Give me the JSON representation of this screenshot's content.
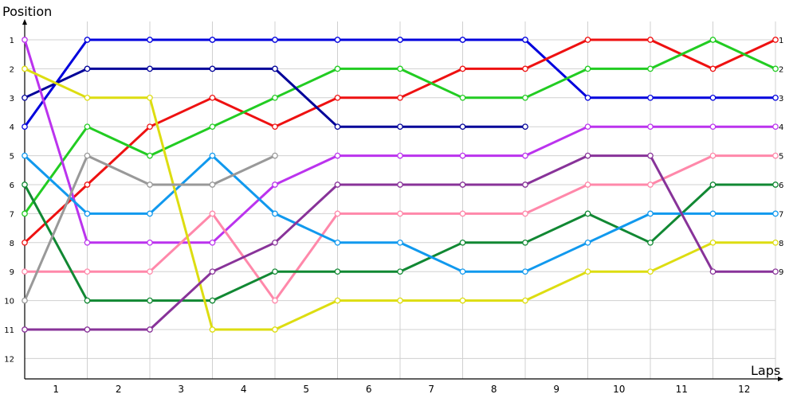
{
  "chart_data": {
    "type": "line",
    "title": "",
    "ylabel": "Position",
    "xlabel": "Laps",
    "x_ticks": [
      "1",
      "2",
      "3",
      "4",
      "5",
      "6",
      "7",
      "8",
      "9",
      "10",
      "11",
      "12"
    ],
    "y_ticks": [
      "1",
      "2",
      "3",
      "4",
      "5",
      "6",
      "7",
      "8",
      "9",
      "10",
      "11",
      "12"
    ],
    "right_y_ticks": [
      "1",
      "2",
      "3",
      "4",
      "5",
      "6",
      "7",
      "8",
      "9"
    ],
    "y_inverted": true,
    "ylim": [
      1,
      12
    ],
    "grid": true,
    "x": [
      0,
      1,
      2,
      3,
      4,
      5,
      6,
      7,
      8,
      9,
      10,
      11,
      12
    ],
    "series": [
      {
        "color": "#0000dd",
        "values": [
          4,
          1,
          1,
          1,
          1,
          1,
          1,
          1,
          1,
          3,
          3,
          3,
          3
        ]
      },
      {
        "color": "#ee1111",
        "values": [
          8,
          6,
          4,
          3,
          4,
          3,
          3,
          2,
          2,
          1,
          1,
          2,
          1
        ]
      },
      {
        "color": "#22cc22",
        "values": [
          7,
          4,
          5,
          4,
          3,
          2,
          2,
          3,
          3,
          2,
          2,
          1,
          2
        ]
      },
      {
        "color": "#000099",
        "values": [
          3,
          2,
          2,
          2,
          2,
          4,
          4,
          4,
          4,
          null,
          null,
          null,
          null
        ]
      },
      {
        "color": "#bb33ee",
        "values": [
          1,
          8,
          8,
          8,
          6,
          5,
          5,
          5,
          5,
          4,
          4,
          4,
          4
        ]
      },
      {
        "color": "#ff88aa",
        "values": [
          9,
          9,
          9,
          7,
          10,
          7,
          7,
          7,
          7,
          6,
          6,
          5,
          5
        ]
      },
      {
        "color": "#118833",
        "values": [
          6,
          10,
          10,
          10,
          9,
          9,
          9,
          8,
          8,
          7,
          8,
          6,
          6
        ]
      },
      {
        "color": "#1199ee",
        "values": [
          5,
          7,
          7,
          5,
          7,
          8,
          8,
          9,
          9,
          8,
          7,
          7,
          7
        ]
      },
      {
        "color": "#dddd11",
        "values": [
          2,
          3,
          3,
          11,
          11,
          10,
          10,
          10,
          10,
          9,
          9,
          8,
          8
        ]
      },
      {
        "color": "#883399",
        "values": [
          11,
          11,
          11,
          9,
          8,
          6,
          6,
          6,
          6,
          5,
          5,
          9,
          9
        ]
      },
      {
        "color": "#999999",
        "values": [
          10,
          5,
          6,
          6,
          5,
          null,
          null,
          null,
          null,
          null,
          null,
          null,
          null
        ]
      }
    ]
  }
}
